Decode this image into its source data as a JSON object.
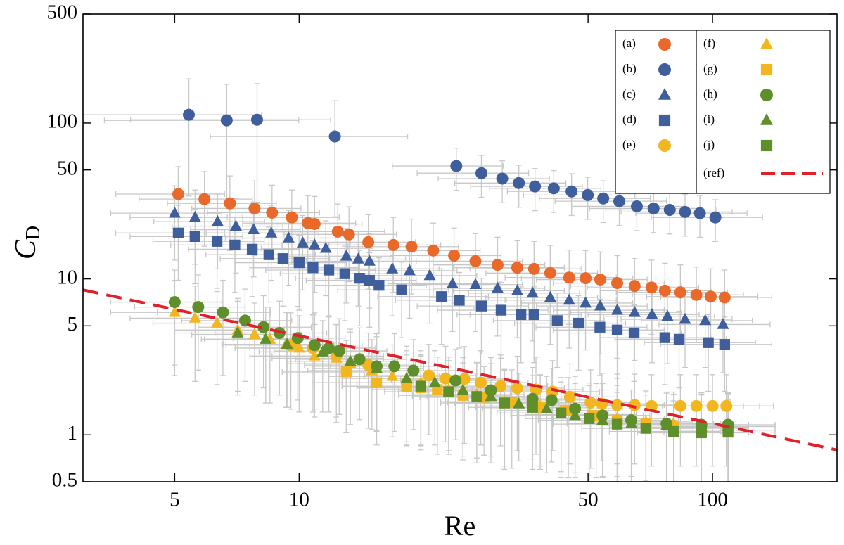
{
  "chart_data": {
    "type": "scatter",
    "xlabel": "Re",
    "ylabel": "C",
    "ylabel_subscript": "D",
    "xscale": "log",
    "yscale": "log",
    "xlim": [
      3,
      200
    ],
    "ylim": [
      0.5,
      500
    ],
    "xticks": [
      5,
      10,
      50,
      100
    ],
    "yticks": [
      0.5,
      1,
      5,
      10,
      50,
      100,
      500
    ],
    "error_color": "#c8c8c8",
    "legend": "top-right",
    "series": [
      {
        "name": "(a)",
        "color": "#e8692a",
        "marker": "circle",
        "x": [
          5.1,
          5.9,
          6.8,
          7.8,
          8.6,
          9.6,
          10.5,
          10.9,
          12.4,
          13.2,
          14.7,
          16.9,
          18.7,
          21.1,
          23.7,
          26.7,
          30.2,
          33.7,
          37,
          40.5,
          45,
          49.3,
          53.5,
          58.8,
          64.8,
          71.2,
          76.7,
          83.6,
          91.4,
          99,
          107
        ],
        "values": [
          35,
          32.5,
          30.5,
          28.3,
          26.6,
          24.8,
          22.8,
          22.5,
          20.1,
          19.3,
          17.2,
          16.5,
          16.1,
          15.2,
          14.1,
          13,
          12.3,
          11.8,
          11.6,
          10.9,
          10.2,
          10.1,
          9.9,
          9.4,
          9,
          8.8,
          8.4,
          8.2,
          7.9,
          7.7,
          7.6
        ],
        "xerr": [
          1.5,
          1.8,
          2,
          2.3,
          2.6,
          2.9,
          3.2,
          3.3,
          3.7,
          4,
          4.4,
          5.1,
          5.6,
          6.3,
          7.1,
          8,
          9.1,
          10.1,
          11.1,
          12.2,
          13.5,
          14.8,
          16,
          17.6,
          19.4,
          21.4,
          23,
          25.1,
          27.4,
          29.7,
          32.1
        ],
        "yerr": [
          17.5,
          16.3,
          15.3,
          14.2,
          13.3,
          12.4,
          11.4,
          11.3,
          10.1,
          9.7,
          8.6,
          8.3,
          8.1,
          7.6,
          7.1,
          6.5,
          6.2,
          5.9,
          5.8,
          5.5,
          5.1,
          5.1,
          5,
          4.7,
          4.5,
          4.4,
          4.2,
          4.1,
          4,
          3.9,
          3.8
        ]
      },
      {
        "name": "(b)",
        "color": "#3f5e9c",
        "marker": "circle",
        "x": [
          5.41,
          6.68,
          7.91,
          12.2,
          24,
          27.6,
          31,
          34,
          37.2,
          41.3,
          45.6,
          49.9,
          54.4,
          59.5,
          65.6,
          72,
          78.8,
          85.8,
          93.2,
          101.6
        ],
        "values": [
          113,
          104,
          105,
          82,
          53,
          47.7,
          44,
          41.2,
          39.2,
          38.1,
          36.4,
          34.5,
          32.8,
          31.5,
          29.2,
          28.3,
          27.7,
          26.9,
          26.4,
          24.8
        ],
        "xerr": [
          2.7,
          3.3,
          4,
          6.1,
          7.2,
          8.3,
          9.3,
          10.2,
          11.2,
          12.4,
          13.7,
          15,
          16.3,
          17.9,
          19.7,
          21.6,
          23.6,
          25.7,
          28,
          30.5
        ],
        "yerr": [
          79,
          73,
          74,
          57,
          16,
          14.3,
          13.2,
          12.4,
          11.8,
          11.4,
          10.9,
          10.4,
          9.8,
          9.5,
          8.8,
          8.5,
          8.3,
          8.1,
          7.9,
          7.4
        ]
      },
      {
        "name": "(c)",
        "color": "#3f5e9c",
        "marker": "triangle",
        "x": [
          5,
          5.6,
          6.35,
          7.03,
          7.76,
          8.56,
          9.43,
          10.2,
          10.9,
          11.6,
          13,
          13.9,
          14.8,
          16.8,
          18.5,
          20.7,
          23.5,
          26.7,
          30.2,
          33.7,
          36.7,
          40.5,
          45,
          49.3,
          53.5,
          58.8,
          64.8,
          71.4,
          77.8,
          85.8,
          96,
          106
        ],
        "values": [
          26.4,
          24.8,
          23.3,
          21.8,
          20.7,
          19.7,
          18.3,
          17,
          16.5,
          15.7,
          14,
          13.4,
          13,
          11.6,
          11.3,
          10.5,
          9.3,
          9.2,
          8.7,
          8.4,
          8.1,
          7.6,
          7.3,
          7,
          6.7,
          6.3,
          6.1,
          5.9,
          5.76,
          5.5,
          5.4,
          5.1
        ],
        "xerr": [
          1.5,
          1.7,
          1.9,
          2.1,
          2.3,
          2.6,
          2.8,
          3.1,
          3.3,
          3.5,
          3.9,
          4.2,
          4.4,
          5,
          5.6,
          6.2,
          7.1,
          8,
          9.1,
          10.1,
          11,
          12.2,
          13.5,
          14.8,
          16,
          17.6,
          19.4,
          21.4,
          23.3,
          25.7,
          28.8,
          31.8
        ],
        "yerr": [
          13.2,
          12.4,
          11.7,
          10.9,
          10.4,
          9.9,
          9.2,
          8.5,
          8.3,
          7.9,
          7,
          6.7,
          6.5,
          5.8,
          5.7,
          5.3,
          4.7,
          4.6,
          4.4,
          4.2,
          4.1,
          3.8,
          3.7,
          3.5,
          3.4,
          3.2,
          3.1,
          3,
          2.9,
          2.8,
          2.7,
          2.6
        ]
      },
      {
        "name": "(d)",
        "color": "#3f5e9c",
        "marker": "square",
        "x": [
          5.1,
          5.6,
          6.33,
          6.99,
          7.7,
          8.45,
          9.14,
          10,
          10.8,
          11.8,
          12.9,
          14,
          14.8,
          15.6,
          17.7,
          22.1,
          24.4,
          27.6,
          30.8,
          34.4,
          37,
          42.1,
          47.4,
          53.4,
          58.8,
          64.6,
          76.7,
          83,
          97.7,
          107
        ],
        "values": [
          19.7,
          18.7,
          17.4,
          16.5,
          15.5,
          14.3,
          13.5,
          12.7,
          11.8,
          11.4,
          10.8,
          10.1,
          9.8,
          9.1,
          8.5,
          7.7,
          7.3,
          6.7,
          6.3,
          5.9,
          5.9,
          5.4,
          5.2,
          4.9,
          4.7,
          4.5,
          4.2,
          4.1,
          3.9,
          3.8
        ],
        "xerr": [
          1.5,
          1.7,
          1.9,
          2.1,
          2.3,
          2.5,
          2.7,
          3,
          3.2,
          3.5,
          3.9,
          4.2,
          4.4,
          4.7,
          5.3,
          6.6,
          7.3,
          8.3,
          9.2,
          10.3,
          11.1,
          12.6,
          14.2,
          16,
          17.6,
          19.4,
          23,
          24.9,
          29.3,
          32.1
        ],
        "yerr": [
          9.9,
          9.4,
          8.7,
          8.3,
          7.8,
          7.2,
          6.8,
          6.4,
          5.9,
          5.7,
          5.4,
          5.1,
          4.9,
          4.6,
          4.3,
          3.9,
          3.7,
          3.4,
          3.2,
          3,
          3,
          2.7,
          2.6,
          2.5,
          2.4,
          2.3,
          2.1,
          2.1,
          2,
          1.9
        ]
      },
      {
        "name": "(e)",
        "color": "#f2b71f",
        "marker": "circle",
        "x": [
          9.55,
          10.8,
          12.3,
          14.7,
          18.2,
          20.6,
          22.6,
          25.1,
          27.5,
          30.7,
          33.7,
          37.4,
          41,
          45.2,
          50.7,
          54,
          58.8,
          64.8,
          71.2,
          83.6,
          91.4,
          100,
          108
        ],
        "values": [
          3.76,
          3.6,
          3.2,
          2.8,
          2.16,
          2.4,
          2.3,
          2.28,
          2.16,
          2.05,
          1.99,
          1.95,
          1.89,
          1.75,
          1.61,
          1.58,
          1.55,
          1.55,
          1.53,
          1.53,
          1.53,
          1.53,
          1.53
        ],
        "xerr": [
          2.9,
          3.2,
          3.7,
          4.4,
          5.5,
          6.2,
          6.8,
          7.5,
          8.3,
          9.2,
          10.1,
          11.2,
          12.3,
          13.6,
          15.2,
          16.2,
          17.6,
          19.4,
          21.4,
          25.1,
          27.4,
          30,
          32.4
        ],
        "yerr": [
          2.3,
          2.2,
          1.9,
          1.7,
          1.3,
          1.4,
          1.4,
          1.4,
          1.3,
          1.2,
          1.2,
          1.2,
          1.1,
          1.1,
          1,
          0.9,
          0.9,
          0.9,
          0.9,
          0.9,
          0.9,
          0.9,
          0.9
        ]
      },
      {
        "name": "(f)",
        "color": "#f2b71f",
        "marker": "triangle",
        "x": [
          5,
          5.6,
          6.33,
          7.1,
          7.8,
          8.5,
          9.3,
          10,
          10.9,
          12.3,
          13.3,
          15,
          16.8,
          19.7,
          23,
          26.9,
          31.4,
          38.3,
          43,
          50.3,
          58.8,
          69,
          80.5,
          94,
          109
        ],
        "values": [
          6.1,
          5.6,
          5.2,
          4.7,
          4.4,
          4.1,
          3.8,
          3.6,
          3.2,
          3.1,
          2.86,
          2.58,
          2.37,
          2.16,
          1.95,
          1.81,
          1.63,
          1.53,
          1.43,
          1.35,
          1.27,
          1.21,
          1.18,
          1.16,
          1.15
        ],
        "xerr": [
          1.5,
          1.7,
          1.9,
          2.1,
          2.3,
          2.6,
          2.8,
          3,
          3.3,
          3.7,
          4,
          4.5,
          5,
          5.9,
          6.9,
          8.1,
          9.4,
          11.5,
          12.9,
          15.1,
          17.6,
          20.7,
          24.2,
          28.2,
          32.7
        ],
        "yerr": [
          3.7,
          3.4,
          3.1,
          2.8,
          2.6,
          2.5,
          2.3,
          2.2,
          1.9,
          1.9,
          1.7,
          1.5,
          1.4,
          1.3,
          1.2,
          1.1,
          1,
          0.9,
          0.9,
          0.8,
          0.8,
          0.7,
          0.7,
          0.7,
          0.7
        ]
      },
      {
        "name": "(g)",
        "color": "#f2b71f",
        "marker": "square",
        "x": [
          13,
          15.4,
          18.2,
          19.7,
          21.6,
          24.9,
          28,
          32.7,
          38.3,
          44.8,
          52.3,
          58.8,
          69,
          80.5,
          94,
          109
        ],
        "values": [
          2.53,
          2.16,
          2.05,
          2,
          1.95,
          1.79,
          1.74,
          1.61,
          1.5,
          1.43,
          1.33,
          1.24,
          1.18,
          1.12,
          1.1,
          1.07
        ],
        "xerr": [
          3.9,
          4.6,
          5.5,
          5.9,
          6.5,
          7.5,
          8.4,
          9.8,
          11.5,
          13.4,
          15.7,
          17.6,
          20.7,
          24.2,
          28.2,
          32.7
        ],
        "yerr": [
          1.5,
          1.3,
          1.2,
          1.2,
          1.2,
          1.1,
          1,
          1,
          0.9,
          0.9,
          0.8,
          0.7,
          0.7,
          0.7,
          0.7,
          0.6
        ]
      },
      {
        "name": "(h)",
        "color": "#5e8f2a",
        "marker": "circle",
        "x": [
          5,
          5.7,
          6.54,
          7.4,
          8.2,
          8.96,
          9.92,
          10.9,
          11.8,
          12.5,
          14,
          15.4,
          17,
          18.9,
          23.9,
          29.1,
          36.7,
          40.8,
          46.5,
          54.2,
          63.6,
          77.4,
          94,
          109
        ],
        "values": [
          7.1,
          6.6,
          6.1,
          5.4,
          4.9,
          4.5,
          4.17,
          3.76,
          3.6,
          3.45,
          3.05,
          2.75,
          2.75,
          2.58,
          2.23,
          1.93,
          1.7,
          1.67,
          1.47,
          1.33,
          1.24,
          1.18,
          1.16,
          1.16
        ],
        "xerr": [
          1.5,
          1.7,
          2,
          2.2,
          2.5,
          2.7,
          3,
          3.3,
          3.5,
          3.8,
          4.2,
          4.6,
          5.1,
          5.7,
          7.2,
          8.7,
          11,
          12.2,
          14,
          16.3,
          19.1,
          23.2,
          28.2,
          32.7
        ],
        "yerr": [
          4.3,
          4,
          3.7,
          3.2,
          2.9,
          2.7,
          2.5,
          2.3,
          2.2,
          2.1,
          1.8,
          1.7,
          1.7,
          1.5,
          1.3,
          1.2,
          1,
          1,
          0.9,
          0.8,
          0.7,
          0.7,
          0.7,
          0.7
        ]
      },
      {
        "name": "(i)",
        "color": "#5e8f2a",
        "marker": "triangle",
        "x": [
          7.1,
          8.3,
          9.35,
          11.4,
          13.3,
          15.4,
          18.2,
          21.3,
          24.9,
          29.1,
          34,
          39.7,
          46.5,
          54.2,
          63.6,
          77.4,
          94,
          109
        ],
        "values": [
          4.5,
          4.1,
          3.8,
          3.4,
          2.96,
          2.66,
          2.3,
          2.16,
          1.93,
          1.76,
          1.58,
          1.47,
          1.33,
          1.24,
          1.18,
          1.15,
          1.12,
          1.13
        ],
        "xerr": [
          2.1,
          2.5,
          2.8,
          3.4,
          4,
          4.6,
          5.5,
          6.4,
          7.5,
          8.7,
          10.2,
          11.9,
          14,
          16.3,
          19.1,
          23.2,
          28.2,
          32.7
        ],
        "yerr": [
          2.7,
          2.5,
          2.3,
          2,
          1.8,
          1.6,
          1.4,
          1.3,
          1.2,
          1.1,
          0.9,
          0.9,
          0.8,
          0.7,
          0.7,
          0.7,
          0.7,
          0.7
        ]
      },
      {
        "name": "(j)",
        "color": "#5e8f2a",
        "marker": "square",
        "x": [
          19.7,
          23,
          26.9,
          31.4,
          36.7,
          43,
          50.3,
          58.8,
          69,
          80.5,
          94,
          109
        ],
        "values": [
          2.05,
          1.89,
          1.76,
          1.6,
          1.5,
          1.38,
          1.27,
          1.17,
          1.1,
          1.05,
          1.03,
          1.04
        ],
        "xerr": [
          5.9,
          6.9,
          8.1,
          9.4,
          11,
          12.9,
          15.1,
          17.6,
          20.7,
          24.2,
          28.2,
          32.7
        ],
        "yerr": [
          1.2,
          1.1,
          1.1,
          1,
          0.9,
          0.8,
          0.8,
          0.7,
          0.7,
          0.6,
          0.6,
          0.6
        ]
      },
      {
        "name": "(ref)",
        "color": "#e0202a",
        "marker": "dashed-line",
        "x": [
          3,
          200
        ],
        "values": [
          8.5,
          0.8
        ]
      }
    ]
  }
}
